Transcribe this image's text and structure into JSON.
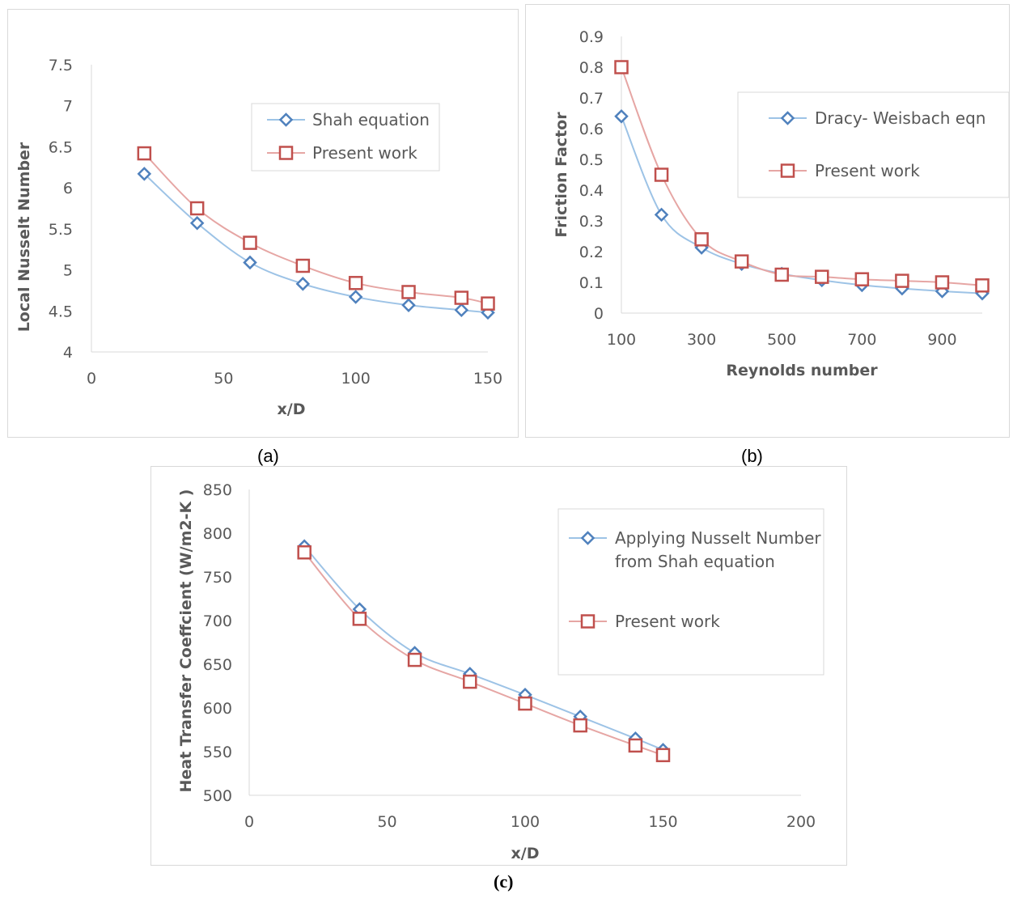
{
  "captions": {
    "a": "(a)",
    "b": "(b)",
    "c": "(c)"
  },
  "colors": {
    "series1": "#4f81bd",
    "series1_line": "#9dc3e6",
    "series2": "#c0504d",
    "series2_line": "#e6a6a4",
    "axis": "#d9d9d9",
    "text": "#595959"
  },
  "chart_data": [
    {
      "id": "a",
      "type": "line",
      "xlabel": "x/D",
      "ylabel": "Local Nusselt Number",
      "xlim": [
        0,
        150
      ],
      "ylim": [
        4,
        7.5
      ],
      "xticks": [
        "0",
        "50",
        "100",
        "150"
      ],
      "yticks": [
        "4",
        "4.5",
        "5",
        "5.5",
        "6",
        "6.5",
        "7",
        "7.5"
      ],
      "grid": false,
      "legend_position": "top-right",
      "series": [
        {
          "name": "Shah equation",
          "marker": "diamond",
          "x": [
            20,
            40,
            60,
            80,
            100,
            120,
            140,
            150
          ],
          "y": [
            6.17,
            5.57,
            5.09,
            4.83,
            4.67,
            4.57,
            4.51,
            4.48
          ]
        },
        {
          "name": "Present work",
          "marker": "square",
          "x": [
            20,
            40,
            60,
            80,
            100,
            120,
            140,
            150
          ],
          "y": [
            6.42,
            5.75,
            5.33,
            5.05,
            4.84,
            4.73,
            4.66,
            4.59
          ]
        }
      ]
    },
    {
      "id": "b",
      "type": "line",
      "xlabel": "Reynolds number",
      "ylabel": "Friction Factor",
      "xlim": [
        100,
        1000
      ],
      "ylim": [
        0,
        0.9
      ],
      "xticks": [
        "100",
        "300",
        "500",
        "700",
        "900"
      ],
      "yticks": [
        "0",
        "0.1",
        "0.2",
        "0.3",
        "0.4",
        "0.5",
        "0.6",
        "0.7",
        "0.8",
        "0.9"
      ],
      "grid": false,
      "legend_position": "top-right",
      "series": [
        {
          "name": "Dracy- Weisbach eqn",
          "marker": "diamond",
          "x": [
            100,
            200,
            300,
            400,
            500,
            600,
            700,
            800,
            900,
            1000
          ],
          "y": [
            0.64,
            0.32,
            0.213,
            0.16,
            0.128,
            0.107,
            0.091,
            0.08,
            0.071,
            0.064
          ]
        },
        {
          "name": "Present work",
          "marker": "square",
          "x": [
            100,
            200,
            300,
            400,
            500,
            600,
            700,
            800,
            900,
            1000
          ],
          "y": [
            0.8,
            0.45,
            0.24,
            0.168,
            0.125,
            0.118,
            0.11,
            0.105,
            0.1,
            0.09
          ]
        }
      ]
    },
    {
      "id": "c",
      "type": "line",
      "xlabel": "x/D",
      "ylabel": "Heat Transfer Coeffcient (W/m2-K )",
      "xlim": [
        0,
        200
      ],
      "ylim": [
        500,
        850
      ],
      "xticks": [
        "0",
        "50",
        "100",
        "150",
        "200"
      ],
      "yticks": [
        "500",
        "550",
        "600",
        "650",
        "700",
        "750",
        "800",
        "850"
      ],
      "grid": false,
      "legend_position": "top-right",
      "series": [
        {
          "name": "Applying Nusselt Number\nfrom Shah equation",
          "marker": "diamond",
          "x": [
            20,
            40,
            60,
            80,
            100,
            120,
            140,
            150
          ],
          "y": [
            785,
            713,
            663,
            639,
            615,
            590,
            565,
            552
          ]
        },
        {
          "name": "Present work",
          "marker": "square",
          "x": [
            20,
            40,
            60,
            80,
            100,
            120,
            140,
            150
          ],
          "y": [
            778,
            702,
            655,
            630,
            605,
            580,
            557,
            546
          ]
        }
      ]
    }
  ]
}
